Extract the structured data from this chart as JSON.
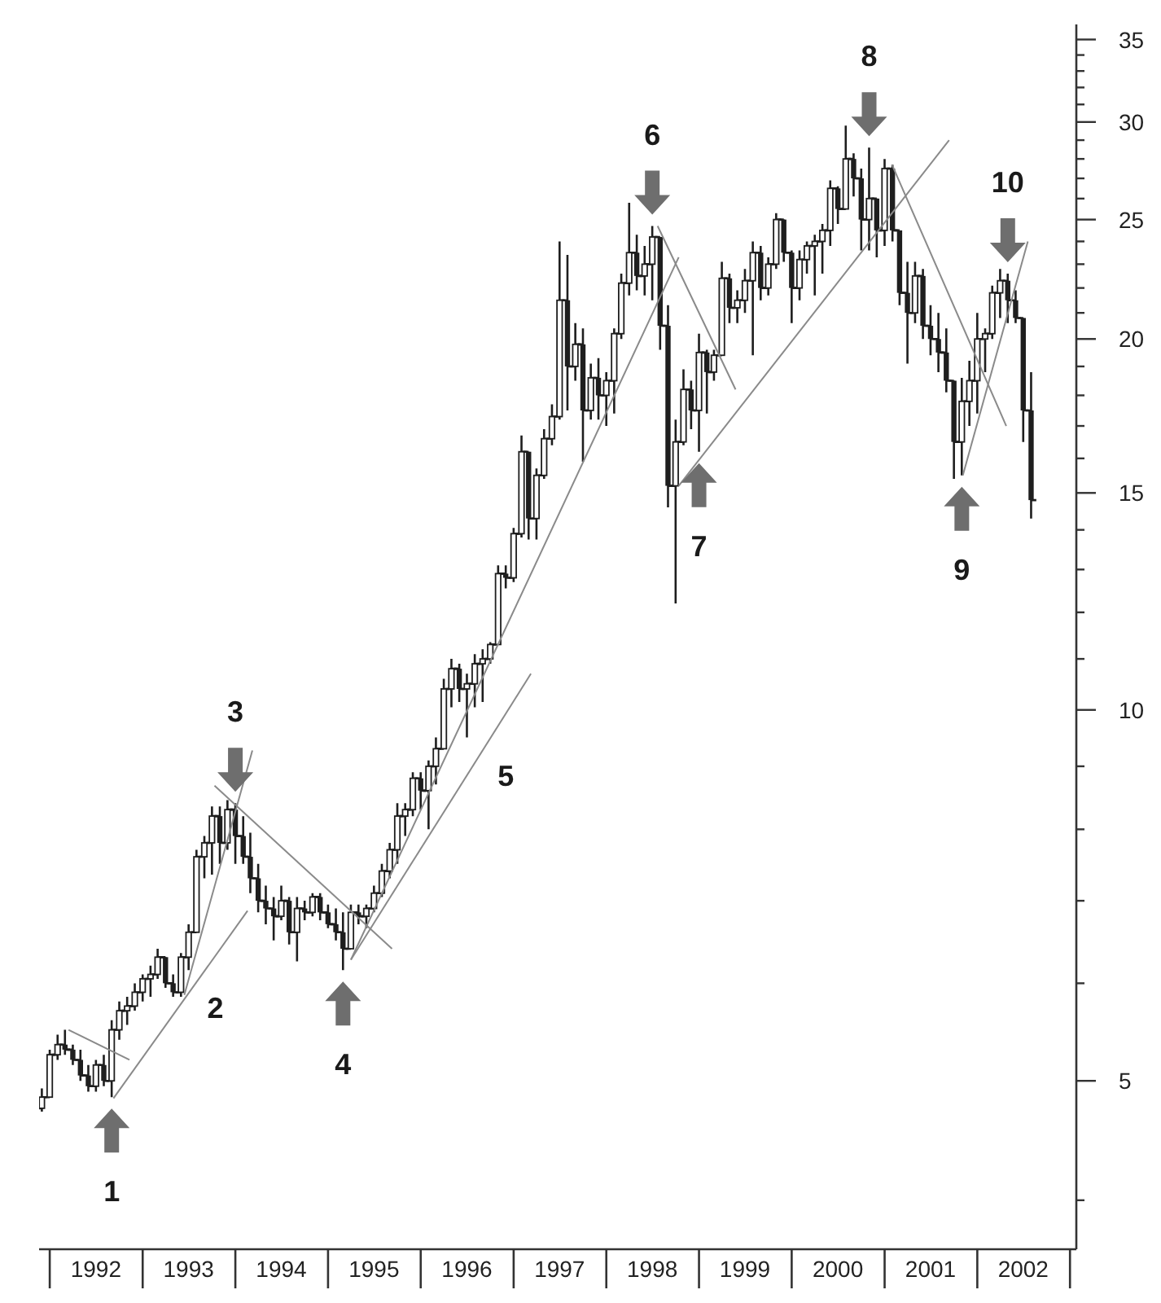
{
  "chart_data": {
    "type": "candlestick",
    "color": "#1e1e1e",
    "log": true,
    "x": [
      "1991-12",
      "1992-01",
      "1992-02",
      "1992-03",
      "1992-04",
      "1992-05",
      "1992-06",
      "1992-07",
      "1992-08",
      "1992-09",
      "1992-10",
      "1992-11",
      "1992-12",
      "1993-01",
      "1993-02",
      "1993-03",
      "1993-04",
      "1993-05",
      "1993-06",
      "1993-07",
      "1993-08",
      "1993-09",
      "1993-10",
      "1993-11",
      "1993-12",
      "1994-01",
      "1994-02",
      "1994-03",
      "1994-04",
      "1994-05",
      "1994-06",
      "1994-07",
      "1994-08",
      "1994-09",
      "1994-10",
      "1994-11",
      "1994-12",
      "1995-01",
      "1995-02",
      "1995-03",
      "1995-04",
      "1995-05",
      "1995-06",
      "1995-07",
      "1995-08",
      "1995-09",
      "1995-10",
      "1995-11",
      "1995-12",
      "1996-01",
      "1996-02",
      "1996-03",
      "1996-04",
      "1996-05",
      "1996-06",
      "1996-07",
      "1996-08",
      "1996-09",
      "1996-10",
      "1996-11",
      "1996-12",
      "1997-01",
      "1997-02",
      "1997-03",
      "1997-04",
      "1997-05",
      "1997-06",
      "1997-07",
      "1997-08",
      "1997-09",
      "1997-10",
      "1997-11",
      "1997-12",
      "1998-01",
      "1998-02",
      "1998-03",
      "1998-04",
      "1998-05",
      "1998-06",
      "1998-07",
      "1998-08",
      "1998-09",
      "1998-10",
      "1998-11",
      "1998-12",
      "1999-01",
      "1999-02",
      "1999-03",
      "1999-04",
      "1999-05",
      "1999-06",
      "1999-07",
      "1999-08",
      "1999-09",
      "1999-10",
      "1999-11",
      "1999-12",
      "2000-01",
      "2000-02",
      "2000-03",
      "2000-04",
      "2000-05",
      "2000-06",
      "2000-07",
      "2000-08",
      "2000-09",
      "2000-10",
      "2000-11",
      "2000-12",
      "2001-01",
      "2001-02",
      "2001-03",
      "2001-04",
      "2001-05",
      "2001-06",
      "2001-07",
      "2001-08",
      "2001-09",
      "2001-10",
      "2001-11",
      "2001-12",
      "2002-01",
      "2002-02",
      "2002-03",
      "2002-04",
      "2002-05",
      "2002-06",
      "2002-07",
      "2002-08"
    ],
    "ohlc": [
      [
        4.75,
        4.93,
        4.72,
        4.85
      ],
      [
        4.85,
        5.3,
        4.85,
        5.25
      ],
      [
        5.25,
        5.45,
        5.2,
        5.35
      ],
      [
        5.35,
        5.5,
        5.25,
        5.3
      ],
      [
        5.3,
        5.35,
        5.15,
        5.2
      ],
      [
        5.2,
        5.3,
        5.0,
        5.05
      ],
      [
        5.05,
        5.15,
        4.9,
        4.95
      ],
      [
        4.95,
        5.2,
        4.9,
        5.15
      ],
      [
        5.15,
        5.25,
        4.95,
        5.0
      ],
      [
        5.0,
        5.6,
        4.85,
        5.5
      ],
      [
        5.5,
        5.8,
        5.4,
        5.7
      ],
      [
        5.7,
        5.85,
        5.55,
        5.75
      ],
      [
        5.75,
        6.0,
        5.7,
        5.9
      ],
      [
        5.9,
        6.1,
        5.8,
        6.05
      ],
      [
        6.05,
        6.2,
        5.85,
        6.1
      ],
      [
        6.1,
        6.4,
        6.05,
        6.3
      ],
      [
        6.3,
        6.3,
        5.95,
        6.0
      ],
      [
        6.0,
        6.1,
        5.85,
        5.9
      ],
      [
        5.9,
        6.35,
        5.85,
        6.3
      ],
      [
        6.3,
        6.7,
        6.15,
        6.6
      ],
      [
        6.6,
        7.7,
        6.6,
        7.6
      ],
      [
        7.6,
        7.9,
        7.3,
        7.8
      ],
      [
        7.8,
        8.35,
        7.35,
        8.2
      ],
      [
        8.2,
        8.35,
        7.5,
        7.8
      ],
      [
        7.8,
        8.45,
        7.7,
        8.3
      ],
      [
        8.3,
        8.4,
        7.5,
        7.9
      ],
      [
        7.9,
        8.2,
        7.5,
        7.6
      ],
      [
        7.6,
        7.95,
        7.1,
        7.3
      ],
      [
        7.3,
        7.5,
        6.85,
        7.0
      ],
      [
        7.0,
        7.2,
        6.7,
        6.9
      ],
      [
        6.9,
        7.05,
        6.5,
        6.8
      ],
      [
        6.8,
        7.2,
        6.75,
        7.0
      ],
      [
        7.0,
        7.05,
        6.45,
        6.6
      ],
      [
        6.6,
        7.05,
        6.25,
        6.9
      ],
      [
        6.9,
        7.0,
        6.75,
        6.85
      ],
      [
        6.85,
        7.1,
        6.8,
        7.05
      ],
      [
        7.05,
        7.1,
        6.75,
        6.85
      ],
      [
        6.85,
        6.95,
        6.65,
        6.7
      ],
      [
        6.7,
        6.9,
        6.5,
        6.6
      ],
      [
        6.6,
        6.85,
        6.15,
        6.4
      ],
      [
        6.4,
        6.95,
        6.4,
        6.85
      ],
      [
        6.85,
        6.95,
        6.7,
        6.8
      ],
      [
        6.8,
        6.95,
        6.65,
        6.9
      ],
      [
        6.9,
        7.2,
        6.85,
        7.1
      ],
      [
        7.1,
        7.5,
        7.05,
        7.4
      ],
      [
        7.4,
        7.8,
        7.3,
        7.7
      ],
      [
        7.7,
        8.4,
        7.5,
        8.2
      ],
      [
        8.2,
        8.4,
        7.9,
        8.3
      ],
      [
        8.3,
        8.9,
        8.2,
        8.8
      ],
      [
        8.8,
        8.9,
        8.3,
        8.6
      ],
      [
        8.6,
        9.1,
        8.0,
        9.0
      ],
      [
        9.0,
        9.5,
        8.7,
        9.3
      ],
      [
        9.3,
        10.6,
        9.3,
        10.4
      ],
      [
        10.4,
        11.0,
        10.05,
        10.8
      ],
      [
        10.8,
        10.9,
        10.15,
        10.4
      ],
      [
        10.4,
        10.7,
        9.5,
        10.5
      ],
      [
        10.5,
        11.1,
        10.05,
        10.9
      ],
      [
        10.9,
        11.2,
        10.15,
        11.0
      ],
      [
        11.0,
        11.35,
        10.9,
        11.3
      ],
      [
        11.3,
        13.1,
        11.3,
        12.9
      ],
      [
        12.9,
        13.1,
        12.55,
        12.8
      ],
      [
        12.8,
        14.05,
        12.7,
        13.9
      ],
      [
        13.9,
        16.7,
        13.8,
        16.2
      ],
      [
        16.2,
        16.2,
        13.75,
        14.3
      ],
      [
        14.3,
        15.7,
        13.75,
        15.5
      ],
      [
        15.5,
        16.9,
        15.4,
        16.6
      ],
      [
        16.6,
        17.7,
        16.4,
        17.3
      ],
      [
        17.3,
        24.0,
        17.2,
        21.5
      ],
      [
        21.5,
        23.4,
        17.5,
        19.0
      ],
      [
        19.0,
        20.6,
        18.5,
        19.8
      ],
      [
        19.8,
        20.4,
        15.9,
        17.5
      ],
      [
        17.5,
        19.1,
        17.2,
        18.6
      ],
      [
        18.6,
        19.3,
        17.2,
        18.0
      ],
      [
        18.0,
        18.8,
        17.0,
        18.5
      ],
      [
        18.5,
        20.4,
        17.4,
        20.2
      ],
      [
        20.2,
        22.6,
        20.0,
        22.2
      ],
      [
        22.2,
        25.8,
        21.7,
        23.5
      ],
      [
        23.5,
        24.3,
        21.9,
        22.5
      ],
      [
        22.5,
        23.8,
        21.7,
        23.0
      ],
      [
        23.0,
        24.7,
        21.5,
        24.2
      ],
      [
        24.2,
        24.2,
        19.6,
        20.5
      ],
      [
        20.5,
        21.3,
        14.6,
        15.2
      ],
      [
        15.2,
        17.2,
        12.2,
        16.5
      ],
      [
        16.5,
        18.9,
        16.4,
        18.2
      ],
      [
        18.2,
        18.5,
        16.9,
        17.5
      ],
      [
        17.5,
        20.2,
        16.2,
        19.5
      ],
      [
        19.5,
        19.6,
        17.4,
        18.8
      ],
      [
        18.8,
        19.6,
        18.5,
        19.4
      ],
      [
        19.4,
        23.1,
        19.4,
        22.4
      ],
      [
        22.4,
        22.6,
        20.6,
        21.2
      ],
      [
        21.2,
        21.9,
        20.6,
        21.5
      ],
      [
        21.5,
        22.8,
        21.0,
        22.3
      ],
      [
        22.3,
        24.0,
        19.4,
        23.5
      ],
      [
        23.5,
        23.8,
        21.5,
        22.0
      ],
      [
        22.0,
        23.3,
        21.7,
        23.0
      ],
      [
        23.0,
        25.3,
        22.8,
        25.0
      ],
      [
        25.0,
        25.0,
        23.1,
        23.5
      ],
      [
        23.5,
        23.6,
        20.6,
        22.0
      ],
      [
        22.0,
        23.6,
        21.5,
        23.2
      ],
      [
        23.2,
        24.0,
        22.6,
        23.8
      ],
      [
        23.8,
        24.3,
        21.7,
        24.0
      ],
      [
        24.0,
        24.8,
        22.6,
        24.5
      ],
      [
        24.5,
        26.9,
        23.8,
        26.5
      ],
      [
        26.5,
        26.6,
        24.8,
        25.5
      ],
      [
        25.5,
        29.8,
        25.5,
        28.0
      ],
      [
        28.0,
        28.3,
        26.1,
        27.0
      ],
      [
        27.0,
        27.5,
        23.6,
        25.0
      ],
      [
        25.0,
        28.6,
        23.6,
        26.0
      ],
      [
        26.0,
        26.0,
        23.3,
        24.5
      ],
      [
        24.5,
        28.0,
        23.8,
        27.5
      ],
      [
        27.5,
        27.7,
        24.0,
        24.5
      ],
      [
        24.5,
        24.5,
        21.3,
        21.8
      ],
      [
        21.8,
        23.1,
        19.1,
        21.0
      ],
      [
        21.0,
        23.1,
        20.6,
        22.5
      ],
      [
        22.5,
        22.8,
        20.0,
        20.5
      ],
      [
        20.5,
        21.3,
        19.4,
        20.0
      ],
      [
        20.0,
        21.0,
        18.8,
        19.5
      ],
      [
        19.5,
        20.4,
        18.1,
        18.5
      ],
      [
        18.5,
        18.5,
        15.4,
        16.5
      ],
      [
        16.5,
        18.6,
        15.5,
        17.8
      ],
      [
        17.8,
        19.2,
        17.0,
        18.5
      ],
      [
        18.5,
        21.0,
        17.4,
        20.0
      ],
      [
        20.0,
        20.4,
        18.8,
        20.2
      ],
      [
        20.2,
        22.1,
        20.0,
        21.8
      ],
      [
        21.8,
        22.8,
        20.8,
        22.3
      ],
      [
        22.3,
        22.6,
        20.6,
        21.5
      ],
      [
        21.5,
        21.9,
        20.6,
        20.8
      ],
      [
        20.8,
        20.8,
        16.5,
        17.5
      ],
      [
        17.5,
        18.8,
        14.3,
        14.8
      ]
    ],
    "series": [
      {
        "type": "line",
        "color": "#8a8a8a",
        "x": [
          "1992-03-15",
          "1992-11-10"
        ],
        "values": [
          5.5,
          5.2
        ]
      },
      {
        "type": "line",
        "color": "#8a8a8a",
        "x": [
          "1992-09-08",
          "1994-02-18"
        ],
        "values": [
          4.84,
          6.87
        ]
      },
      {
        "type": "line",
        "color": "#8a8a8a",
        "x": [
          "1993-06-14",
          "1994-03-09"
        ],
        "values": [
          5.87,
          9.27
        ]
      },
      {
        "type": "line",
        "color": "#8a8a8a",
        "x": [
          "1993-10-11",
          "1995-09-10"
        ],
        "values": [
          8.68,
          6.4
        ]
      },
      {
        "type": "line",
        "color": "#8a8a8a",
        "x": [
          "1995-04-01",
          "1997-03-10"
        ],
        "values": [
          6.27,
          10.7
        ]
      },
      {
        "type": "line",
        "color": "#8a8a8a",
        "x": [
          "1995-04-01",
          "1998-10-13"
        ],
        "values": [
          6.27,
          23.3
        ]
      },
      {
        "type": "line",
        "color": "#8a8a8a",
        "x": [
          "1998-07-22",
          "1999-05-25"
        ],
        "values": [
          24.7,
          18.2
        ]
      },
      {
        "type": "line",
        "color": "#8a8a8a",
        "x": [
          "1998-10-13",
          "2001-09-12"
        ],
        "values": [
          15.2,
          29.0
        ]
      },
      {
        "type": "line",
        "color": "#8a8a8a",
        "x": [
          "2001-01-30",
          "2002-04-25"
        ],
        "values": [
          27.7,
          17.0
        ]
      },
      {
        "type": "line",
        "color": "#8a8a8a",
        "x": [
          "2001-11-05",
          "2002-07-19"
        ],
        "values": [
          15.5,
          24.0
        ]
      }
    ],
    "annotations": [
      {
        "text": "1",
        "x": "1992-09",
        "y": 4.85
      },
      {
        "text": "2",
        "x": "1993-06-14",
        "y": 5.87
      },
      {
        "text": "3",
        "x": "1994-01",
        "y": 8.4
      },
      {
        "text": "4",
        "x": "1995-03",
        "y": 6.15
      },
      {
        "text": "5",
        "x": "1996-08",
        "y": 9.06
      },
      {
        "text": "6",
        "x": "1998-07",
        "y": 24.7
      },
      {
        "text": "7",
        "x": "1999-01",
        "y": 16.2
      },
      {
        "text": "8",
        "x": "2000-11",
        "y": 28.6
      },
      {
        "text": "9",
        "x": "2001-11",
        "y": 15.5
      },
      {
        "text": "10",
        "x": "2002-05",
        "y": 22.6
      }
    ],
    "xlim": [
      "1991-11-20",
      "2003-01-26"
    ],
    "xticks": [
      {
        "value": "1992-01-01",
        "label": null
      },
      {
        "value": "1992-07-01",
        "label": "1992"
      },
      {
        "value": "1993-01-01",
        "label": null
      },
      {
        "value": "1993-07-01",
        "label": "1993"
      },
      {
        "value": "1994-01-01",
        "label": null
      },
      {
        "value": "1994-07-01",
        "label": "1994"
      },
      {
        "value": "1995-01-01",
        "label": null
      },
      {
        "value": "1995-07-01",
        "label": "1995"
      },
      {
        "value": "1996-01-01",
        "label": null
      },
      {
        "value": "1996-07-01",
        "label": "1996"
      },
      {
        "value": "1997-01-01",
        "label": null
      },
      {
        "value": "1997-07-01",
        "label": "1997"
      },
      {
        "value": "1998-01-01",
        "label": null
      },
      {
        "value": "1998-07-01",
        "label": "1998"
      },
      {
        "value": "1999-01-01",
        "label": null
      },
      {
        "value": "1999-07-01",
        "label": "1999"
      },
      {
        "value": "2000-01-01",
        "label": null
      },
      {
        "value": "2000-07-01",
        "label": "2000"
      },
      {
        "value": "2001-01-01",
        "label": null
      },
      {
        "value": "2001-07-01",
        "label": "2001"
      },
      {
        "value": "2002-01-01",
        "label": null
      },
      {
        "value": "2002-07-01",
        "label": "2002"
      },
      {
        "value": "2003-01-01",
        "label": null
      }
    ],
    "ylim": [
      3.65,
      36
    ],
    "yticks": [
      {
        "value": 4,
        "label": null
      },
      5,
      {
        "value": 6,
        "label": null
      },
      {
        "value": 7,
        "label": null
      },
      {
        "value": 8,
        "label": null
      },
      {
        "value": 9,
        "label": null
      },
      10,
      {
        "value": 11,
        "label": null
      },
      {
        "value": 12,
        "label": null
      },
      {
        "value": 13,
        "label": null
      },
      {
        "value": 14,
        "label": null
      },
      15,
      {
        "value": 16,
        "label": null
      },
      {
        "value": 17,
        "label": null
      },
      {
        "value": 18,
        "label": null
      },
      {
        "value": 19,
        "label": null
      },
      20,
      {
        "value": 21,
        "label": null
      },
      {
        "value": 22,
        "label": null
      },
      {
        "value": 23,
        "label": null
      },
      {
        "value": 24,
        "label": null
      },
      25,
      {
        "value": 26,
        "label": null
      },
      {
        "value": 27,
        "label": null
      },
      {
        "value": 28,
        "label": null
      },
      {
        "value": 29,
        "label": null
      },
      30,
      {
        "value": 31,
        "label": null
      },
      {
        "value": 32,
        "label": null
      },
      {
        "value": 33,
        "label": null
      },
      {
        "value": 34,
        "label": null
      },
      35
    ]
  }
}
